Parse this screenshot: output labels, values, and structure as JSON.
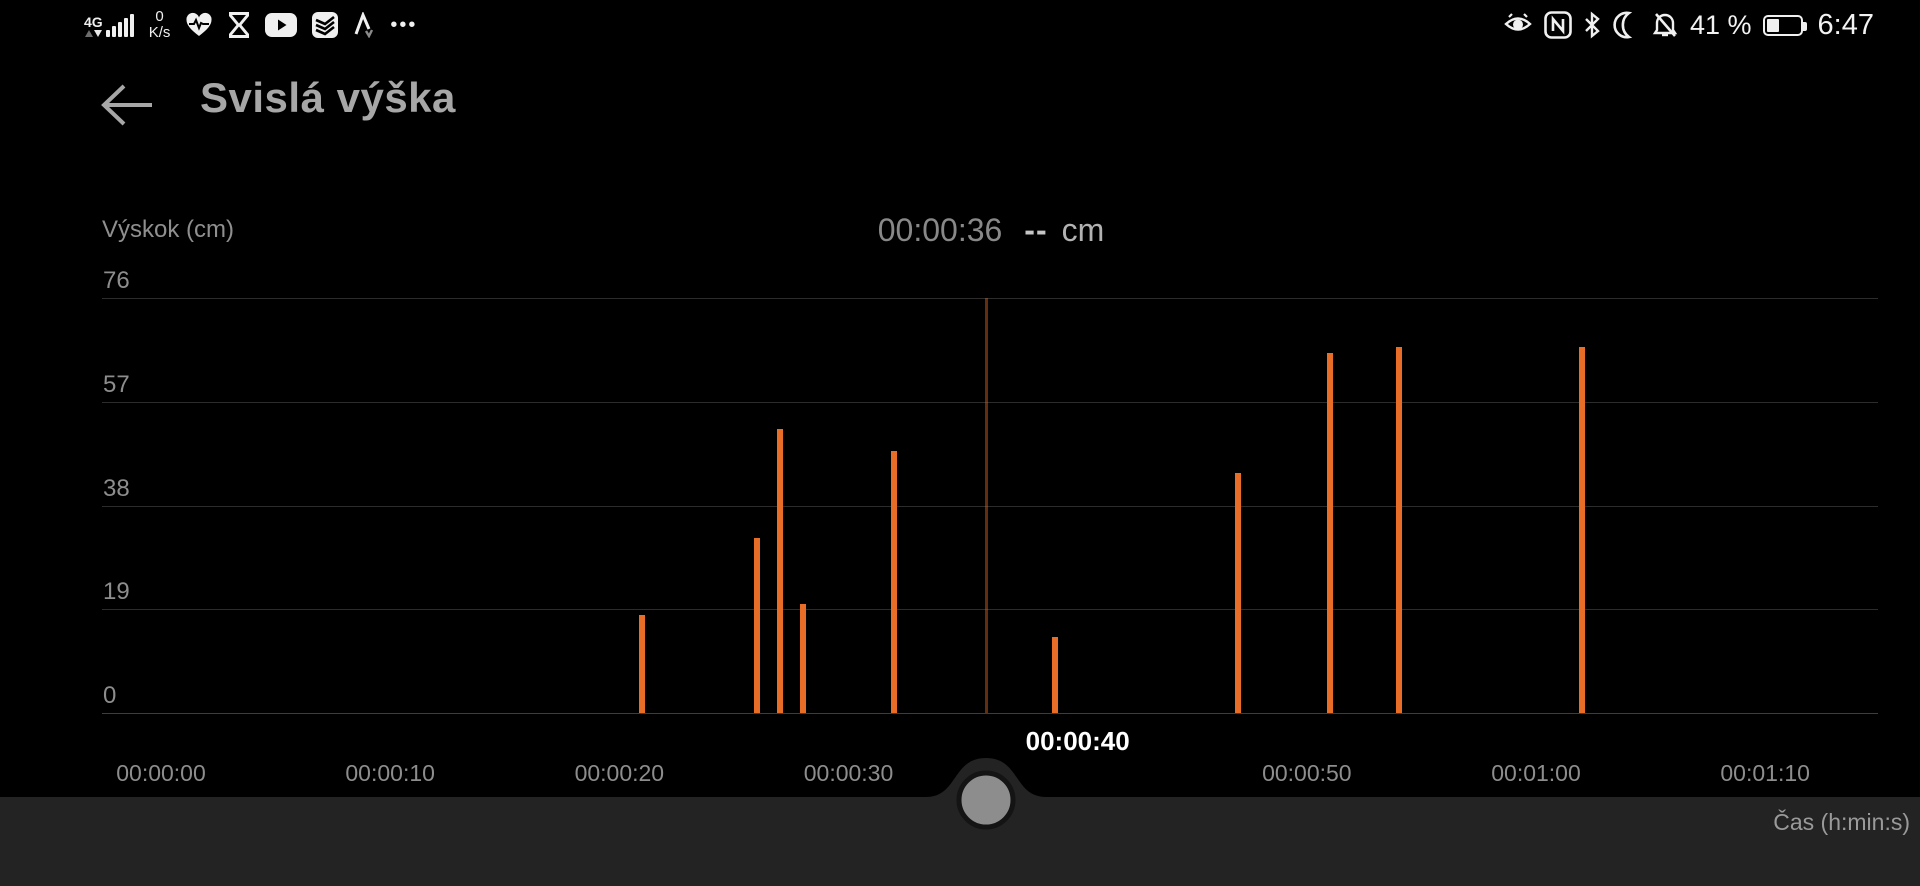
{
  "status_bar": {
    "network_label": "4G",
    "net_speed_value": "0",
    "net_speed_unit": "K/s",
    "more_label": "•••",
    "battery_label": "41 %",
    "battery_level": 0.4,
    "clock": "6:47"
  },
  "header": {
    "title": "Svislá výška"
  },
  "chart_data": {
    "type": "bar",
    "title": "Svislá výška",
    "ylabel": "Výskok (cm)",
    "xlabel": "Čas (h:min:s)",
    "ylim": [
      0,
      76
    ],
    "y_ticks": [
      76,
      57,
      38,
      19,
      0
    ],
    "x_ticks": [
      {
        "t": 0,
        "label": "00:00:00"
      },
      {
        "t": 10,
        "label": "00:00:10"
      },
      {
        "t": 20,
        "label": "00:00:20"
      },
      {
        "t": 30,
        "label": "00:00:30"
      },
      {
        "t": 40,
        "label": "00:00:40"
      },
      {
        "t": 50,
        "label": "00:00:50"
      },
      {
        "t": 60,
        "label": "00:01:00"
      },
      {
        "t": 70,
        "label": "00:01:10"
      }
    ],
    "selected_tick_label": "00:00:40",
    "bars": [
      {
        "t": 21,
        "h": 18
      },
      {
        "t": 26,
        "h": 32
      },
      {
        "t": 27,
        "h": 52
      },
      {
        "t": 28,
        "h": 20
      },
      {
        "t": 32,
        "h": 48
      },
      {
        "t": 39,
        "h": 14
      },
      {
        "t": 47,
        "h": 44
      },
      {
        "t": 51,
        "h": 66
      },
      {
        "t": 54,
        "h": 67
      },
      {
        "t": 62,
        "h": 67
      }
    ],
    "cursor": {
      "t": 36,
      "time_label": "00:00:36",
      "value_label": "--",
      "unit_label": "cm"
    },
    "legend": null,
    "grid": true,
    "colors": {
      "bar": "#e86e27",
      "cursor": "#e86e27",
      "grid": "#2c2c2c",
      "axis": "#3d3d3d",
      "tick_text": "#8d8d8d",
      "selected_tick_text": "#ffffff",
      "knob": "#8d8d8d",
      "track": "#232323"
    }
  }
}
